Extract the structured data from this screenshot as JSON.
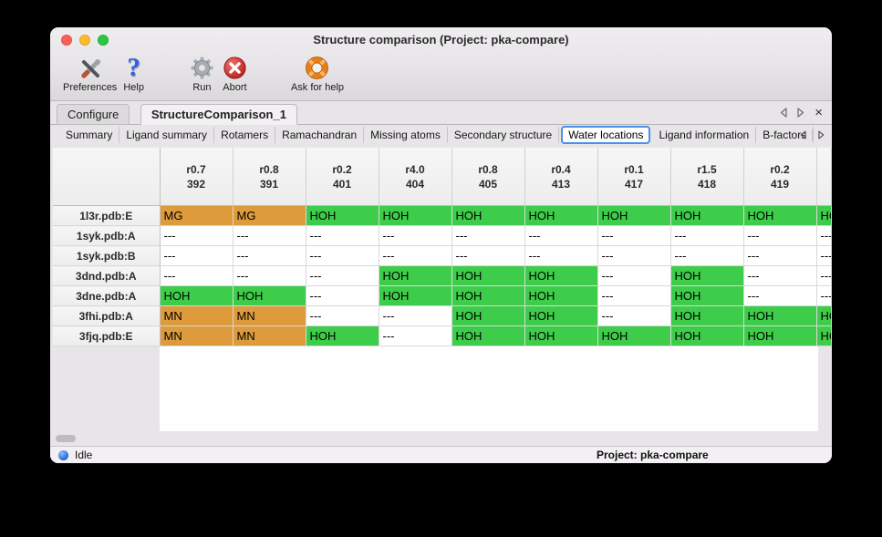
{
  "window": {
    "title": "Structure comparison (Project: pka-compare)"
  },
  "toolbar": {
    "items": [
      {
        "label": "Preferences",
        "icon": "tools-icon"
      },
      {
        "label": "Help",
        "icon": "question-mark-icon",
        "glyph": "?"
      },
      {
        "label": "Run",
        "icon": "gear-icon"
      },
      {
        "label": "Abort",
        "icon": "abort-icon"
      },
      {
        "label": "Ask for help",
        "icon": "lifebuoy-icon"
      }
    ]
  },
  "tabs": {
    "primary": [
      {
        "label": "Configure"
      },
      {
        "label": "StructureComparison_1"
      }
    ],
    "active_primary": "StructureComparison_1",
    "secondary": [
      {
        "label": "Summary"
      },
      {
        "label": "Ligand summary"
      },
      {
        "label": "Rotamers"
      },
      {
        "label": "Ramachandran"
      },
      {
        "label": "Missing atoms"
      },
      {
        "label": "Secondary structure"
      },
      {
        "label": "Water locations"
      },
      {
        "label": "Ligand information"
      },
      {
        "label": "B-factors"
      }
    ],
    "active_secondary": "Water locations"
  },
  "table": {
    "columns": [
      {
        "line1": "r0.7",
        "line2": "392"
      },
      {
        "line1": "r0.8",
        "line2": "391"
      },
      {
        "line1": "r0.2",
        "line2": "401"
      },
      {
        "line1": "r4.0",
        "line2": "404"
      },
      {
        "line1": "r0.8",
        "line2": "405"
      },
      {
        "line1": "r0.4",
        "line2": "413"
      },
      {
        "line1": "r0.1",
        "line2": "417"
      },
      {
        "line1": "r1.5",
        "line2": "418"
      },
      {
        "line1": "r0.2",
        "line2": "419"
      },
      {
        "line1": "",
        "line2": ""
      }
    ],
    "rows": [
      {
        "label": "1l3r.pdb:E",
        "cells": [
          {
            "text": "MG",
            "type": "metal"
          },
          {
            "text": "MG",
            "type": "metal"
          },
          {
            "text": "HOH",
            "type": "water"
          },
          {
            "text": "HOH",
            "type": "water"
          },
          {
            "text": "HOH",
            "type": "water"
          },
          {
            "text": "HOH",
            "type": "water"
          },
          {
            "text": "HOH",
            "type": "water"
          },
          {
            "text": "HOH",
            "type": "water"
          },
          {
            "text": "HOH",
            "type": "water"
          },
          {
            "text": "HOH",
            "type": "water"
          }
        ]
      },
      {
        "label": "1syk.pdb:A",
        "cells": [
          {
            "text": "---",
            "type": "none"
          },
          {
            "text": "---",
            "type": "none"
          },
          {
            "text": "---",
            "type": "none"
          },
          {
            "text": "---",
            "type": "none"
          },
          {
            "text": "---",
            "type": "none"
          },
          {
            "text": "---",
            "type": "none"
          },
          {
            "text": "---",
            "type": "none"
          },
          {
            "text": "---",
            "type": "none"
          },
          {
            "text": "---",
            "type": "none"
          },
          {
            "text": "---",
            "type": "none"
          }
        ]
      },
      {
        "label": "1syk.pdb:B",
        "cells": [
          {
            "text": "---",
            "type": "none"
          },
          {
            "text": "---",
            "type": "none"
          },
          {
            "text": "---",
            "type": "none"
          },
          {
            "text": "---",
            "type": "none"
          },
          {
            "text": "---",
            "type": "none"
          },
          {
            "text": "---",
            "type": "none"
          },
          {
            "text": "---",
            "type": "none"
          },
          {
            "text": "---",
            "type": "none"
          },
          {
            "text": "---",
            "type": "none"
          },
          {
            "text": "---",
            "type": "none"
          }
        ]
      },
      {
        "label": "3dnd.pdb:A",
        "cells": [
          {
            "text": "---",
            "type": "none"
          },
          {
            "text": "---",
            "type": "none"
          },
          {
            "text": "---",
            "type": "none"
          },
          {
            "text": "HOH",
            "type": "water"
          },
          {
            "text": "HOH",
            "type": "water"
          },
          {
            "text": "HOH",
            "type": "water"
          },
          {
            "text": "---",
            "type": "none"
          },
          {
            "text": "HOH",
            "type": "water"
          },
          {
            "text": "---",
            "type": "none"
          },
          {
            "text": "---",
            "type": "none"
          }
        ]
      },
      {
        "label": "3dne.pdb:A",
        "cells": [
          {
            "text": "HOH",
            "type": "water"
          },
          {
            "text": "HOH",
            "type": "water"
          },
          {
            "text": "---",
            "type": "none"
          },
          {
            "text": "HOH",
            "type": "water"
          },
          {
            "text": "HOH",
            "type": "water"
          },
          {
            "text": "HOH",
            "type": "water"
          },
          {
            "text": "---",
            "type": "none"
          },
          {
            "text": "HOH",
            "type": "water"
          },
          {
            "text": "---",
            "type": "none"
          },
          {
            "text": "---",
            "type": "none"
          }
        ]
      },
      {
        "label": "3fhi.pdb:A",
        "cells": [
          {
            "text": "MN",
            "type": "metal"
          },
          {
            "text": "MN",
            "type": "metal"
          },
          {
            "text": "---",
            "type": "none"
          },
          {
            "text": "---",
            "type": "none"
          },
          {
            "text": "HOH",
            "type": "water"
          },
          {
            "text": "HOH",
            "type": "water"
          },
          {
            "text": "---",
            "type": "none"
          },
          {
            "text": "HOH",
            "type": "water"
          },
          {
            "text": "HOH",
            "type": "water"
          },
          {
            "text": "HOH",
            "type": "water"
          }
        ]
      },
      {
        "label": "3fjq.pdb:E",
        "cells": [
          {
            "text": "MN",
            "type": "metal"
          },
          {
            "text": "MN",
            "type": "metal"
          },
          {
            "text": "HOH",
            "type": "water"
          },
          {
            "text": "---",
            "type": "none"
          },
          {
            "text": "HOH",
            "type": "water"
          },
          {
            "text": "HOH",
            "type": "water"
          },
          {
            "text": "HOH",
            "type": "water"
          },
          {
            "text": "HOH",
            "type": "water"
          },
          {
            "text": "HOH",
            "type": "water"
          },
          {
            "text": "HOH",
            "type": "water"
          }
        ]
      }
    ]
  },
  "colors": {
    "water_cell": "#3ecd4a",
    "metal_cell": "#dd9b3c",
    "empty_cell": "#ffffff",
    "focus_ring": "#4a90e8",
    "status_dot": "#1a5fd6",
    "traffic_lights": [
      "#ff5f57",
      "#febc2e",
      "#28c840"
    ]
  },
  "statusbar": {
    "state": "Idle",
    "project": "Project: pka-compare"
  }
}
